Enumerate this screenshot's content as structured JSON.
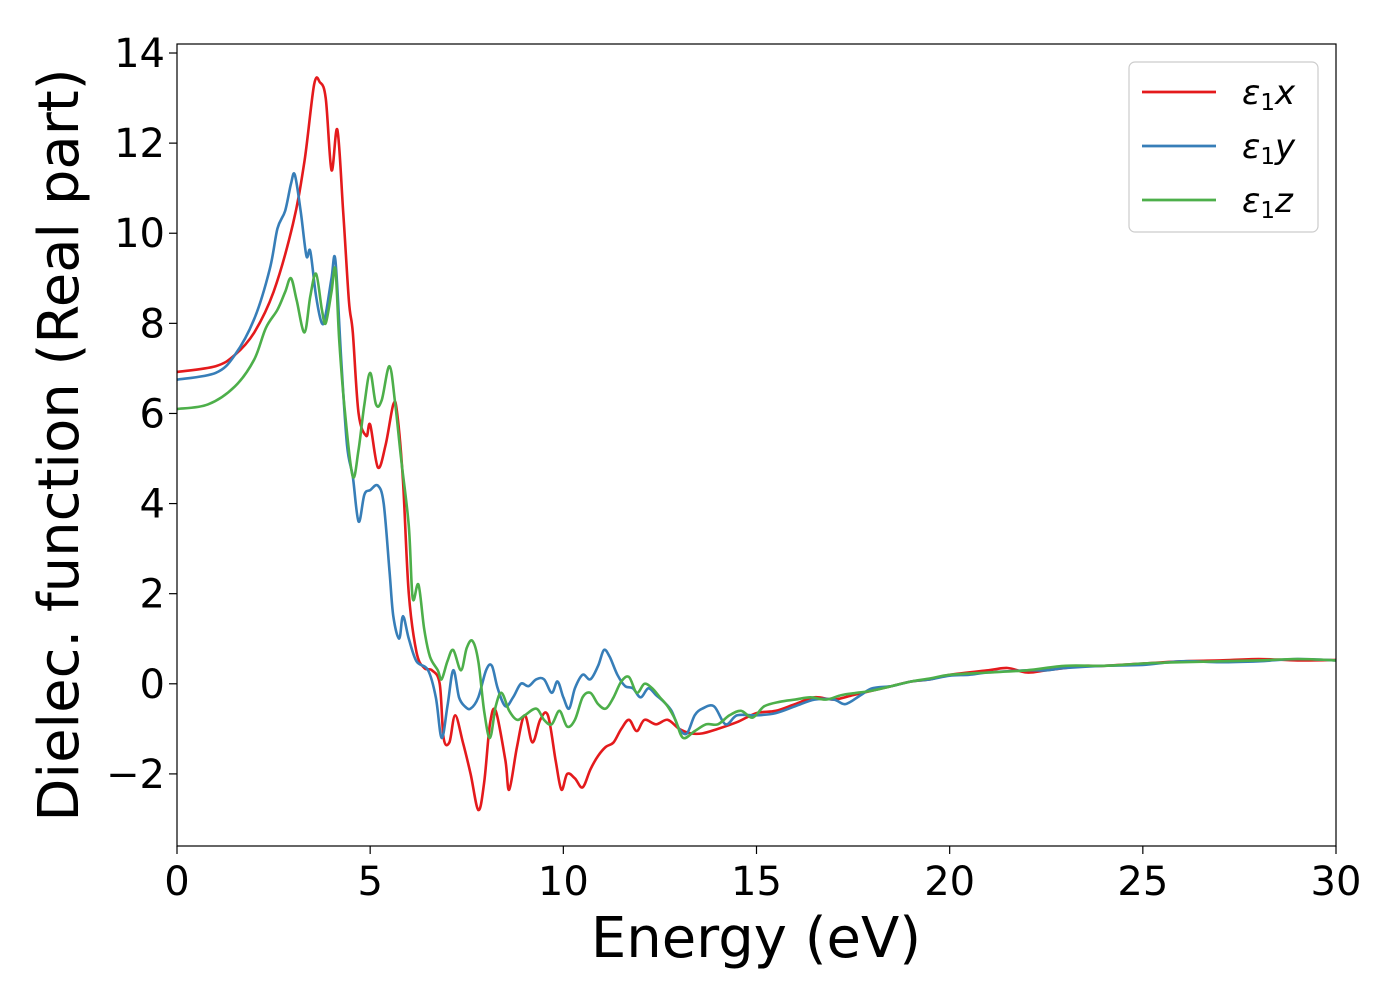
{
  "chart_data": {
    "type": "line",
    "title": "",
    "xlabel": "Energy (eV)",
    "ylabel": "Dielec. function (Real part)",
    "xlim": [
      0,
      30
    ],
    "ylim": [
      -3.6,
      14.2
    ],
    "xticks": [
      0,
      5,
      10,
      15,
      20,
      25,
      30
    ],
    "xtick_labels": [
      "0",
      "5",
      "10",
      "15",
      "20",
      "25",
      "30"
    ],
    "yticks": [
      -2,
      0,
      2,
      4,
      6,
      8,
      10,
      12,
      14
    ],
    "ytick_labels": [
      "−2",
      "0",
      "2",
      "4",
      "6",
      "8",
      "10",
      "12",
      "14"
    ],
    "grid": false,
    "legend_position": "top-right",
    "series": [
      {
        "name": "x",
        "legend_symbol": "ε",
        "legend_sub": "1",
        "legend_var": "x",
        "color": "#e41a1c",
        "points": [
          [
            0,
            6.92
          ],
          [
            1,
            7.05
          ],
          [
            1.5,
            7.3
          ],
          [
            2,
            7.8
          ],
          [
            2.5,
            8.7
          ],
          [
            3,
            10.2
          ],
          [
            3.3,
            11.6
          ],
          [
            3.55,
            13.3
          ],
          [
            3.7,
            13.35
          ],
          [
            3.85,
            13.0
          ],
          [
            4.0,
            11.4
          ],
          [
            4.15,
            12.3
          ],
          [
            4.3,
            10.5
          ],
          [
            4.45,
            8.5
          ],
          [
            4.55,
            7.8
          ],
          [
            4.7,
            6.0
          ],
          [
            4.9,
            5.5
          ],
          [
            5.0,
            5.75
          ],
          [
            5.2,
            4.8
          ],
          [
            5.4,
            5.3
          ],
          [
            5.6,
            6.2
          ],
          [
            5.7,
            6.0
          ],
          [
            5.85,
            4.5
          ],
          [
            6.0,
            2.0
          ],
          [
            6.2,
            0.7
          ],
          [
            6.4,
            0.35
          ],
          [
            6.6,
            0.3
          ],
          [
            6.8,
            0.0
          ],
          [
            6.9,
            -1.2
          ],
          [
            7.05,
            -1.3
          ],
          [
            7.2,
            -0.7
          ],
          [
            7.4,
            -1.3
          ],
          [
            7.6,
            -2.0
          ],
          [
            7.8,
            -2.8
          ],
          [
            7.95,
            -2.2
          ],
          [
            8.1,
            -0.9
          ],
          [
            8.25,
            -0.6
          ],
          [
            8.5,
            -1.7
          ],
          [
            8.6,
            -2.35
          ],
          [
            8.8,
            -1.4
          ],
          [
            9.0,
            -0.7
          ],
          [
            9.2,
            -1.3
          ],
          [
            9.4,
            -0.8
          ],
          [
            9.6,
            -0.7
          ],
          [
            9.8,
            -1.7
          ],
          [
            9.95,
            -2.35
          ],
          [
            10.1,
            -2.0
          ],
          [
            10.3,
            -2.1
          ],
          [
            10.5,
            -2.3
          ],
          [
            10.7,
            -1.9
          ],
          [
            10.9,
            -1.6
          ],
          [
            11.1,
            -1.4
          ],
          [
            11.3,
            -1.3
          ],
          [
            11.5,
            -1.0
          ],
          [
            11.7,
            -0.8
          ],
          [
            11.9,
            -1.05
          ],
          [
            12.1,
            -0.8
          ],
          [
            12.4,
            -0.9
          ],
          [
            12.7,
            -0.8
          ],
          [
            13.0,
            -1.0
          ],
          [
            13.3,
            -1.1
          ],
          [
            13.6,
            -1.1
          ],
          [
            14.0,
            -1.0
          ],
          [
            14.5,
            -0.85
          ],
          [
            15.0,
            -0.65
          ],
          [
            15.5,
            -0.6
          ],
          [
            16.0,
            -0.45
          ],
          [
            16.5,
            -0.3
          ],
          [
            17.0,
            -0.35
          ],
          [
            17.5,
            -0.25
          ],
          [
            18.0,
            -0.15
          ],
          [
            18.5,
            -0.05
          ],
          [
            19.0,
            0.05
          ],
          [
            19.5,
            0.1
          ],
          [
            20.0,
            0.2
          ],
          [
            21.0,
            0.3
          ],
          [
            21.5,
            0.35
          ],
          [
            22.0,
            0.25
          ],
          [
            22.5,
            0.3
          ],
          [
            23.0,
            0.35
          ],
          [
            23.5,
            0.4
          ],
          [
            24.0,
            0.4
          ],
          [
            25.0,
            0.45
          ],
          [
            26.0,
            0.5
          ],
          [
            27.0,
            0.52
          ],
          [
            28.0,
            0.55
          ],
          [
            29.0,
            0.52
          ],
          [
            30.0,
            0.53
          ]
        ]
      },
      {
        "name": "y",
        "legend_symbol": "ε",
        "legend_sub": "1",
        "legend_var": "y",
        "color": "#377eb8",
        "points": [
          [
            0,
            6.75
          ],
          [
            1,
            6.9
          ],
          [
            1.5,
            7.3
          ],
          [
            2,
            8.1
          ],
          [
            2.4,
            9.2
          ],
          [
            2.6,
            10.1
          ],
          [
            2.8,
            10.5
          ],
          [
            2.95,
            11.1
          ],
          [
            3.05,
            11.3
          ],
          [
            3.2,
            10.5
          ],
          [
            3.35,
            9.5
          ],
          [
            3.45,
            9.6
          ],
          [
            3.6,
            8.6
          ],
          [
            3.75,
            8.0
          ],
          [
            3.85,
            8.2
          ],
          [
            4.0,
            9.0
          ],
          [
            4.1,
            9.4
          ],
          [
            4.25,
            7.2
          ],
          [
            4.4,
            5.3
          ],
          [
            4.55,
            4.6
          ],
          [
            4.7,
            3.6
          ],
          [
            4.85,
            4.2
          ],
          [
            5.0,
            4.3
          ],
          [
            5.2,
            4.4
          ],
          [
            5.35,
            4.0
          ],
          [
            5.5,
            2.5
          ],
          [
            5.6,
            1.5
          ],
          [
            5.75,
            1.0
          ],
          [
            5.85,
            1.5
          ],
          [
            6.0,
            1.0
          ],
          [
            6.2,
            0.5
          ],
          [
            6.5,
            0.3
          ],
          [
            6.7,
            -0.3
          ],
          [
            6.85,
            -1.2
          ],
          [
            7.0,
            -0.5
          ],
          [
            7.15,
            0.3
          ],
          [
            7.3,
            -0.3
          ],
          [
            7.45,
            -0.5
          ],
          [
            7.6,
            -0.55
          ],
          [
            7.8,
            -0.3
          ],
          [
            8.0,
            0.3
          ],
          [
            8.15,
            0.4
          ],
          [
            8.3,
            -0.1
          ],
          [
            8.5,
            -0.5
          ],
          [
            8.7,
            -0.3
          ],
          [
            8.9,
            0.0
          ],
          [
            9.1,
            -0.05
          ],
          [
            9.3,
            0.1
          ],
          [
            9.5,
            0.1
          ],
          [
            9.7,
            -0.2
          ],
          [
            9.85,
            0.05
          ],
          [
            10.0,
            -0.3
          ],
          [
            10.15,
            -0.55
          ],
          [
            10.3,
            -0.1
          ],
          [
            10.5,
            0.2
          ],
          [
            10.7,
            0.1
          ],
          [
            10.9,
            0.4
          ],
          [
            11.05,
            0.75
          ],
          [
            11.2,
            0.6
          ],
          [
            11.4,
            0.2
          ],
          [
            11.6,
            -0.05
          ],
          [
            11.8,
            -0.1
          ],
          [
            12.0,
            -0.3
          ],
          [
            12.2,
            -0.1
          ],
          [
            12.4,
            -0.25
          ],
          [
            12.6,
            -0.4
          ],
          [
            12.8,
            -0.6
          ],
          [
            13.0,
            -1.0
          ],
          [
            13.2,
            -1.1
          ],
          [
            13.4,
            -0.7
          ],
          [
            13.6,
            -0.55
          ],
          [
            13.9,
            -0.5
          ],
          [
            14.2,
            -0.9
          ],
          [
            14.5,
            -0.7
          ],
          [
            15.0,
            -0.7
          ],
          [
            15.5,
            -0.65
          ],
          [
            16.0,
            -0.5
          ],
          [
            16.5,
            -0.35
          ],
          [
            17.0,
            -0.35
          ],
          [
            17.3,
            -0.45
          ],
          [
            17.7,
            -0.25
          ],
          [
            18.0,
            -0.1
          ],
          [
            18.5,
            -0.05
          ],
          [
            19.0,
            0.05
          ],
          [
            19.5,
            0.1
          ],
          [
            20.0,
            0.18
          ],
          [
            20.5,
            0.2
          ],
          [
            21.0,
            0.25
          ],
          [
            22.0,
            0.3
          ],
          [
            22.5,
            0.3
          ],
          [
            23.0,
            0.35
          ],
          [
            24.0,
            0.4
          ],
          [
            25.0,
            0.42
          ],
          [
            26.0,
            0.5
          ],
          [
            27.0,
            0.48
          ],
          [
            28.0,
            0.5
          ],
          [
            29.0,
            0.55
          ],
          [
            30.0,
            0.52
          ]
        ]
      },
      {
        "name": "z",
        "legend_symbol": "ε",
        "legend_sub": "1",
        "legend_var": "z",
        "color": "#4daf4a",
        "points": [
          [
            0,
            6.1
          ],
          [
            0.8,
            6.2
          ],
          [
            1.5,
            6.6
          ],
          [
            2.0,
            7.2
          ],
          [
            2.3,
            7.9
          ],
          [
            2.6,
            8.3
          ],
          [
            2.8,
            8.7
          ],
          [
            2.95,
            9.0
          ],
          [
            3.1,
            8.5
          ],
          [
            3.3,
            7.8
          ],
          [
            3.45,
            8.6
          ],
          [
            3.6,
            9.1
          ],
          [
            3.75,
            8.3
          ],
          [
            3.85,
            8.0
          ],
          [
            4.0,
            8.7
          ],
          [
            4.1,
            9.2
          ],
          [
            4.2,
            7.6
          ],
          [
            4.35,
            6.0
          ],
          [
            4.55,
            4.6
          ],
          [
            4.7,
            5.2
          ],
          [
            4.85,
            6.2
          ],
          [
            5.0,
            6.9
          ],
          [
            5.15,
            6.2
          ],
          [
            5.3,
            6.3
          ],
          [
            5.5,
            7.05
          ],
          [
            5.65,
            6.2
          ],
          [
            5.8,
            5.0
          ],
          [
            6.0,
            3.5
          ],
          [
            6.1,
            1.9
          ],
          [
            6.25,
            2.2
          ],
          [
            6.4,
            1.2
          ],
          [
            6.55,
            0.6
          ],
          [
            6.75,
            0.3
          ],
          [
            6.85,
            0.1
          ],
          [
            7.0,
            0.5
          ],
          [
            7.15,
            0.75
          ],
          [
            7.35,
            0.3
          ],
          [
            7.5,
            0.8
          ],
          [
            7.65,
            0.95
          ],
          [
            7.8,
            0.5
          ],
          [
            7.95,
            -0.6
          ],
          [
            8.1,
            -1.2
          ],
          [
            8.25,
            -0.5
          ],
          [
            8.4,
            -0.2
          ],
          [
            8.6,
            -0.6
          ],
          [
            8.8,
            -0.8
          ],
          [
            9.0,
            -0.7
          ],
          [
            9.3,
            -0.55
          ],
          [
            9.5,
            -0.8
          ],
          [
            9.7,
            -0.9
          ],
          [
            9.9,
            -0.6
          ],
          [
            10.1,
            -0.95
          ],
          [
            10.3,
            -0.8
          ],
          [
            10.5,
            -0.3
          ],
          [
            10.7,
            -0.2
          ],
          [
            10.9,
            -0.45
          ],
          [
            11.1,
            -0.55
          ],
          [
            11.3,
            -0.3
          ],
          [
            11.5,
            0.05
          ],
          [
            11.7,
            0.15
          ],
          [
            11.9,
            -0.2
          ],
          [
            12.1,
            0.0
          ],
          [
            12.3,
            -0.1
          ],
          [
            12.5,
            -0.3
          ],
          [
            12.7,
            -0.5
          ],
          [
            12.9,
            -0.8
          ],
          [
            13.1,
            -1.2
          ],
          [
            13.4,
            -1.05
          ],
          [
            13.7,
            -0.9
          ],
          [
            14.0,
            -0.9
          ],
          [
            14.3,
            -0.7
          ],
          [
            14.6,
            -0.6
          ],
          [
            14.9,
            -0.75
          ],
          [
            15.2,
            -0.5
          ],
          [
            15.6,
            -0.4
          ],
          [
            16.0,
            -0.35
          ],
          [
            16.4,
            -0.3
          ],
          [
            16.8,
            -0.35
          ],
          [
            17.2,
            -0.25
          ],
          [
            17.6,
            -0.2
          ],
          [
            18.0,
            -0.15
          ],
          [
            18.5,
            -0.05
          ],
          [
            19.0,
            0.05
          ],
          [
            19.5,
            0.12
          ],
          [
            20.0,
            0.2
          ],
          [
            21.0,
            0.25
          ],
          [
            22.0,
            0.3
          ],
          [
            23.0,
            0.4
          ],
          [
            24.0,
            0.4
          ],
          [
            25.0,
            0.45
          ],
          [
            26.0,
            0.48
          ],
          [
            27.0,
            0.5
          ],
          [
            28.0,
            0.52
          ],
          [
            29.0,
            0.55
          ],
          [
            30.0,
            0.52
          ]
        ]
      }
    ]
  }
}
